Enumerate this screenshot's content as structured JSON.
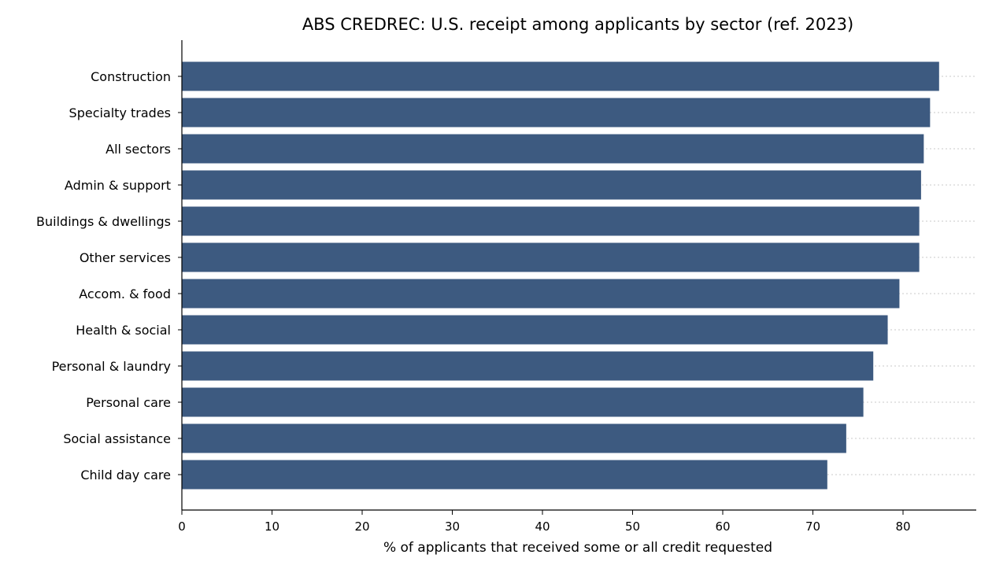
{
  "chart_data": {
    "type": "bar",
    "orientation": "horizontal",
    "title": "ABS CREDREC: U.S. receipt among applicants by sector (ref. 2023)",
    "xlabel": "% of applicants that received some or all credit requested",
    "ylabel": "",
    "xlim": [
      0,
      88
    ],
    "xticks": [
      0,
      10,
      20,
      30,
      40,
      50,
      60,
      70,
      80
    ],
    "grid": "horizontal dotted at each category",
    "bar_color": "#3d5a80",
    "categories": [
      "Construction",
      "Specialty trades",
      "All sectors",
      "Admin & support",
      "Buildings & dwellings",
      "Other services",
      "Accom. & food",
      "Health & social",
      "Personal & laundry",
      "Personal care",
      "Social assistance",
      "Child day care"
    ],
    "values": [
      84.0,
      83.0,
      82.3,
      82.0,
      81.8,
      81.8,
      79.6,
      78.3,
      76.7,
      75.6,
      73.7,
      71.6
    ]
  }
}
